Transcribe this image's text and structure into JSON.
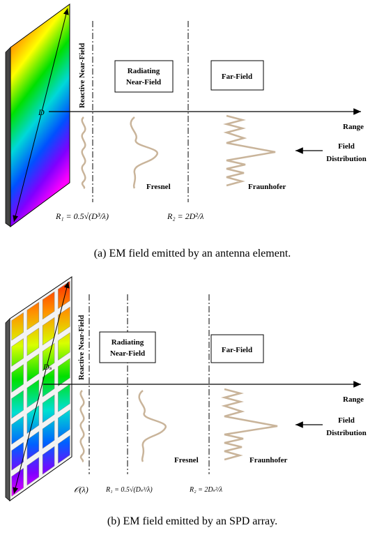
{
  "figure_a": {
    "reactive_label": "Reactive Near-Field",
    "radiating_label_line1": "Radiating",
    "radiating_label_line2": "Near-Field",
    "far_label": "Far-Field",
    "range_label": "Range",
    "field_dist_line1": "Field",
    "field_dist_line2": "Distribution",
    "fresnel_label": "Fresnel",
    "fraunhofer_label": "Fraunhofer",
    "d_label": "D",
    "r1_label": "R₁ = 0.5√(D³/λ)",
    "r2_label": "R₂ = 2D²/λ",
    "caption": "(a) EM field emitted by an antenna element."
  },
  "figure_b": {
    "reactive_label": "Reactive Near-Field",
    "radiating_label_line1": "Radiating",
    "radiating_label_line2": "Near-Field",
    "far_label": "Far-Field",
    "range_label": "Range",
    "field_dist_line1": "Field",
    "field_dist_line2": "Distribution",
    "fresnel_label": "Fresnel",
    "fraunhofer_label": "Fraunhofer",
    "d_label": "Dₛ",
    "o_label": "𝒪(λ)",
    "r1_label": "R₁ = 0.5√(Dₛ³/λ)",
    "r2_label": "R₂ = 2Dₛ²/λ",
    "caption": "(b) EM field emitted by an SPD array."
  },
  "colors": {
    "wave": "#c9b49a",
    "axis": "#000000"
  }
}
